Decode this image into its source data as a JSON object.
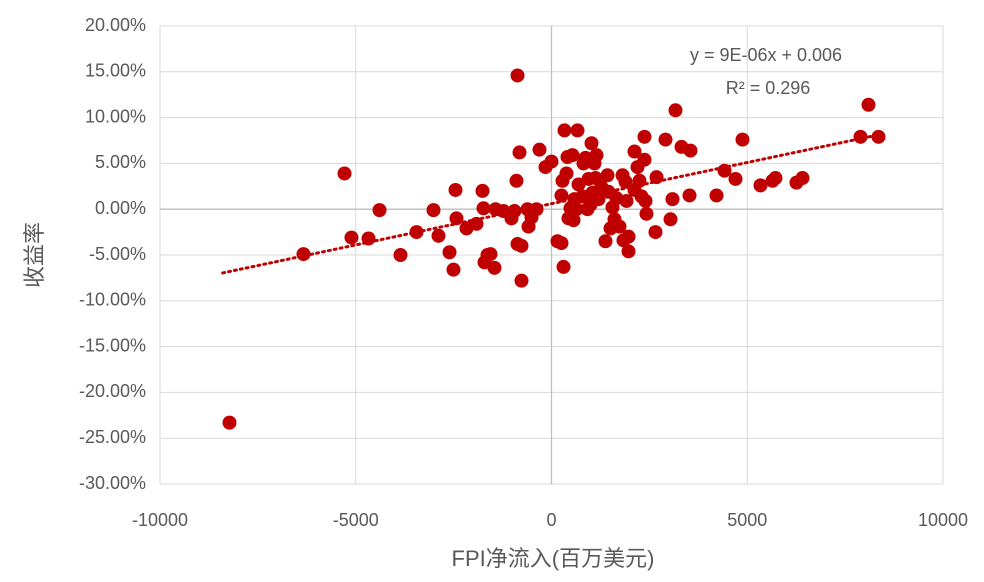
{
  "chart_data": {
    "type": "scatter",
    "x_label": "FPI净流入(百万美元)",
    "y_label": "收益率",
    "xlim": [
      -10000,
      10000
    ],
    "xticks": [
      -10000,
      -5000,
      0,
      5000,
      10000
    ],
    "ylim": [
      -30,
      20
    ],
    "yticks": [
      {
        "value": -30,
        "label": "-30.00%"
      },
      {
        "value": -25,
        "label": "-25.00%"
      },
      {
        "value": -20,
        "label": "-20.00%"
      },
      {
        "value": -15,
        "label": "-15.00%"
      },
      {
        "value": -10,
        "label": "-10.00%"
      },
      {
        "value": -5,
        "label": "-5.00%"
      },
      {
        "value": 0,
        "label": "0.00%"
      },
      {
        "value": 5,
        "label": "5.00%"
      },
      {
        "value": 10,
        "label": "10.00%"
      },
      {
        "value": 15,
        "label": "15.00%"
      },
      {
        "value": 20,
        "label": "20.00%"
      }
    ],
    "grid": true,
    "color": "#c00000",
    "x": [
      -8225,
      -6335,
      -5287,
      -5109,
      -4674,
      -4393,
      -3857,
      -3448,
      -3014,
      -2886,
      -2605,
      -2503,
      -2452,
      -2427,
      -2171,
      -1916,
      -1762,
      -1737,
      -1711,
      -1635,
      -1558,
      -1456,
      -1430,
      -1226,
      -1022,
      -945,
      -894,
      -868,
      -868,
      -817,
      -766,
      -766,
      -613,
      -587,
      -511,
      -383,
      -307,
      -153,
      0,
      153,
      255,
      255,
      281,
      307,
      332,
      383,
      409,
      434,
      485,
      536,
      562,
      587,
      639,
      664,
      690,
      792,
      817,
      868,
      919,
      945,
      996,
      1022,
      1047,
      1098,
      1124,
      1149,
      1200,
      1277,
      1379,
      1430,
      1456,
      1507,
      1558,
      1609,
      1660,
      1737,
      1814,
      1839,
      1890,
      1916,
      1967,
      1967,
      2120,
      2120,
      2197,
      2248,
      2299,
      2375,
      2375,
      2401,
      2426,
      2656,
      2682,
      2912,
      3040,
      3091,
      3167,
      3321,
      3525,
      3550,
      4215,
      4419,
      4700,
      4879,
      5338,
      5645,
      5721,
      6258,
      6411,
      7893,
      8097,
      8352
    ],
    "values": [
      -23.3,
      -4.9,
      3.9,
      -3.1,
      -3.2,
      -0.1,
      -5.0,
      -2.5,
      -0.1,
      -2.9,
      -4.7,
      -6.6,
      2.1,
      -1.0,
      -2.1,
      -1.6,
      2.0,
      0.1,
      -5.8,
      -5.0,
      -4.9,
      -6.4,
      0,
      -0.2,
      -1.0,
      -0.2,
      3.1,
      14.6,
      -3.8,
      6.2,
      -4.0,
      -7.8,
      0,
      -1.9,
      -0.9,
      0,
      6.5,
      4.6,
      5.2,
      -3.5,
      -3.7,
      1.5,
      3.1,
      -6.3,
      8.6,
      3.9,
      5.7,
      -1.0,
      0.1,
      5.9,
      -1.2,
      1.1,
      0,
      8.6,
      2.7,
      1.4,
      5.0,
      5.6,
      0,
      3.3,
      0.5,
      7.2,
      1.8,
      5.0,
      3.4,
      5.9,
      1.1,
      2.4,
      -3.5,
      3.7,
      1.9,
      -2.1,
      0.2,
      -1.1,
      1.2,
      -1.9,
      3.7,
      -3.4,
      3.0,
      0.9,
      -3.0,
      -4.6,
      2.1,
      6.3,
      4.6,
      3.1,
      1.4,
      5.4,
      7.9,
      0.9,
      -0.5,
      -2.5,
      3.5,
      7.6,
      -1.1,
      1.1,
      10.8,
      6.8,
      1.5,
      6.4,
      1.5,
      4.2,
      3.3,
      7.6,
      2.6,
      3.1,
      3.4,
      2.9,
      3.4,
      7.9,
      11.4,
      7.9
    ],
    "trendline": {
      "equation": "y = 9E-06x + 0.006",
      "r2_label": "R² = 0.296",
      "x": [
        -8400,
        8400
      ],
      "values": [
        -6.96,
        8.16
      ],
      "color": "#c00000"
    }
  }
}
